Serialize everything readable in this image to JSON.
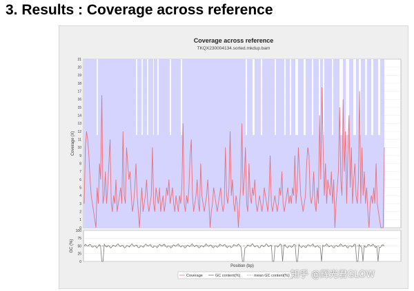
{
  "page": {
    "heading": "3. Results : Coverage across reference"
  },
  "watermark": "知乎 @辉光君GLOW",
  "colors": {
    "coverage_line": "#e8707a",
    "coverage_fill": "#ccccff",
    "gc_line": "#777777",
    "mean_gc_line": "#e08080",
    "panel_bg": "#efefef",
    "plot_bg": "#ffffff"
  },
  "chart_data": [
    {
      "type": "line",
      "title": "Coverage across reference",
      "subtitle": "TKQX230004134.sorted.mkdup.bam",
      "ylabel": "Coverage (X)",
      "xlabel": "",
      "ylim": [
        0,
        21
      ],
      "yticks": [
        "0",
        "1",
        "2",
        "3",
        "4",
        "5",
        "6",
        "7",
        "8",
        "9",
        "10",
        "11",
        "12",
        "13",
        "14",
        "15",
        "16",
        "17",
        "18",
        "19",
        "20",
        "21"
      ],
      "grid": true,
      "series": [
        {
          "name": "Coverage",
          "values": [
            3,
            10,
            12,
            11,
            9,
            6,
            4,
            3,
            2,
            1,
            0,
            5,
            3,
            8,
            6,
            16.5,
            3,
            4,
            7,
            3,
            5,
            8,
            11,
            3,
            2,
            4,
            3,
            6,
            2,
            3,
            4,
            5,
            3,
            12,
            4,
            3,
            10,
            8,
            6,
            7,
            4,
            2,
            3,
            5,
            8,
            4,
            2,
            0,
            3,
            5,
            2,
            3,
            4,
            6,
            3,
            2,
            3,
            4,
            10,
            3,
            2,
            5,
            4,
            3,
            5,
            2,
            3,
            4,
            2,
            3,
            5,
            4,
            6,
            3,
            4,
            5,
            3,
            2,
            4,
            3,
            2,
            4,
            3,
            5,
            13,
            3,
            2,
            4,
            3,
            5,
            9,
            11,
            4,
            2,
            3,
            4,
            6,
            3,
            2,
            8,
            4,
            3,
            2,
            3,
            4,
            6,
            3,
            0,
            2,
            3,
            5,
            4,
            3,
            2,
            3,
            4,
            5,
            3,
            2,
            3,
            10,
            4,
            3,
            5,
            12,
            4,
            6,
            3,
            2,
            4,
            3,
            0,
            3,
            5,
            13,
            4,
            6,
            10,
            3,
            2,
            8,
            4,
            3,
            5,
            4,
            6,
            3,
            2,
            3,
            4,
            3,
            2,
            3,
            5,
            4,
            3,
            2,
            4,
            9,
            3,
            2,
            3,
            4,
            3,
            2,
            3,
            5,
            4,
            7,
            3,
            2,
            3,
            4,
            5,
            3,
            4,
            3,
            5,
            4,
            9,
            3,
            5,
            10,
            7,
            4,
            3,
            2,
            3,
            4,
            8,
            10,
            9,
            4,
            3,
            4,
            7,
            3,
            2,
            5,
            3,
            14,
            6,
            17.5,
            10,
            4,
            8,
            3,
            6,
            5,
            4,
            7,
            3,
            6,
            0,
            3,
            5,
            7,
            15,
            6,
            4,
            16,
            7,
            12,
            3,
            9,
            14,
            5,
            10,
            3,
            6,
            8,
            4,
            3,
            6,
            17,
            3,
            10,
            4,
            7,
            3,
            5,
            2,
            0,
            3,
            4,
            3,
            5,
            3,
            8,
            3,
            2,
            1,
            0,
            0,
            0,
            10
          ]
        }
      ],
      "x_range": "full reference"
    },
    {
      "type": "line",
      "title": "",
      "ylabel": "GC (%)",
      "xlabel": "Position (bp)",
      "ylim": [
        0,
        100
      ],
      "yticks": [
        "0",
        "25",
        "50",
        "75",
        "100"
      ],
      "series": [
        {
          "name": "GC content(%)"
        },
        {
          "name": "mean GC content(%)",
          "value": 50
        }
      ],
      "gc_dips": [
        0.06,
        0.53,
        0.63,
        0.66,
        0.71,
        0.79,
        0.91,
        0.93,
        0.98
      ]
    }
  ],
  "legend": {
    "placement": "bottom-center",
    "items": [
      "Coverage",
      "GC content(%)",
      "mean GC content(%)"
    ]
  }
}
